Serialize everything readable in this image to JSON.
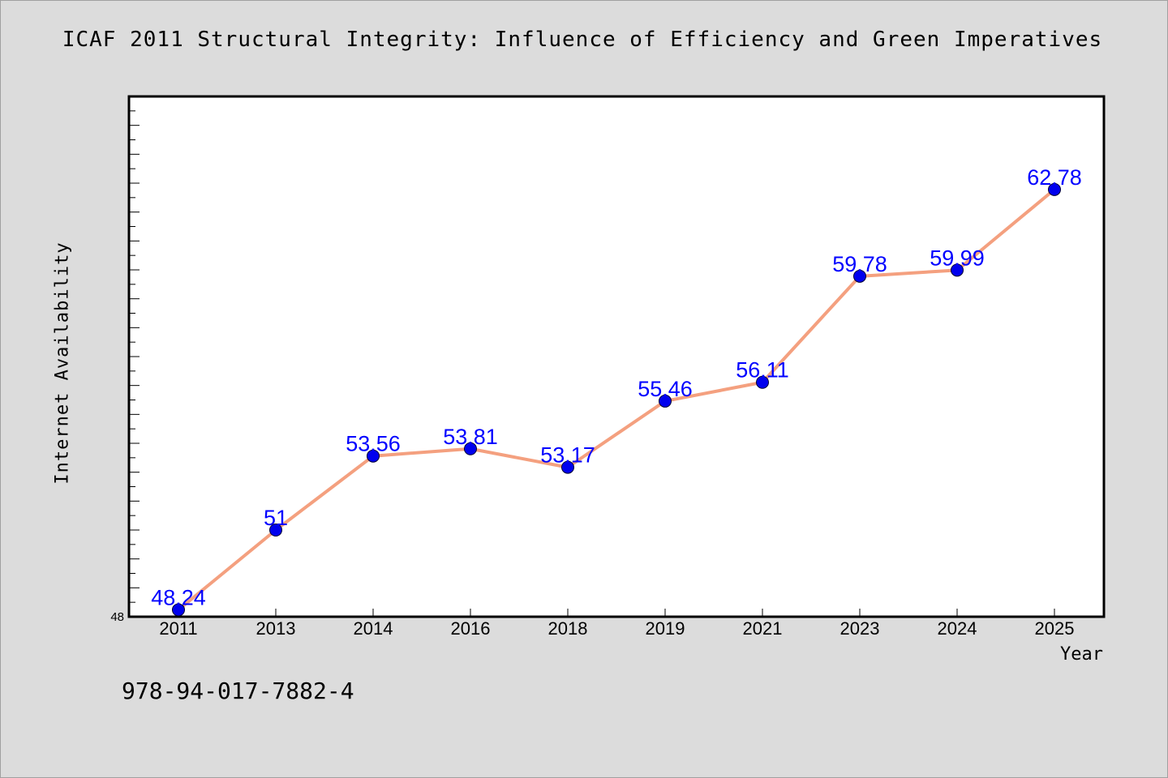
{
  "chart_data": {
    "type": "line",
    "title": "ICAF 2011 Structural Integrity: Influence of Efficiency and Green Imperatives",
    "xlabel": "Year",
    "ylabel": "Internet Availability",
    "categories": [
      "2011",
      "2013",
      "2014",
      "2016",
      "2018",
      "2019",
      "2021",
      "2023",
      "2024",
      "2025"
    ],
    "series": [
      {
        "values": [
          48.24,
          51,
          53.56,
          53.81,
          53.17,
          55.46,
          56.11,
          59.78,
          59.99,
          62.78
        ]
      }
    ],
    "data_labels": [
      "48.24",
      "51",
      "53.56",
      "53.81",
      "53.17",
      "55.46",
      "56.11",
      "59.78",
      "59.99",
      "62.78"
    ],
    "y_tick_labels": [
      "48"
    ],
    "ylim": [
      48,
      66
    ],
    "grid": false,
    "line_color": "#f4a07f",
    "marker_color": "#0000ee",
    "label_color": "#0000ff"
  },
  "footer_note": "978-94-017-7882-4"
}
